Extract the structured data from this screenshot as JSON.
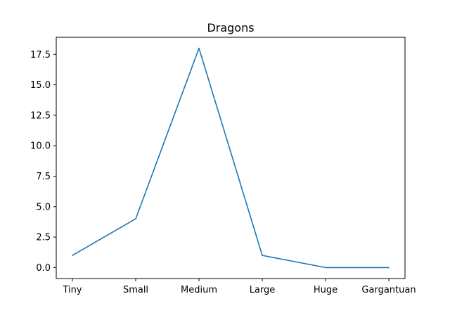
{
  "chart_data": {
    "type": "line",
    "title": "Dragons",
    "xlabel": "",
    "ylabel": "",
    "categories": [
      "Tiny",
      "Small",
      "Medium",
      "Large",
      "Huge",
      "Gargantuan"
    ],
    "series": [
      {
        "values": [
          1,
          4,
          18,
          1,
          0,
          0
        ]
      }
    ],
    "ylim": [
      -0.9,
      18.9
    ],
    "yticks": [
      "0.0",
      "2.5",
      "5.0",
      "7.5",
      "10.0",
      "12.5",
      "15.0",
      "17.5"
    ],
    "grid": false,
    "line_color": "#1f77b4"
  }
}
